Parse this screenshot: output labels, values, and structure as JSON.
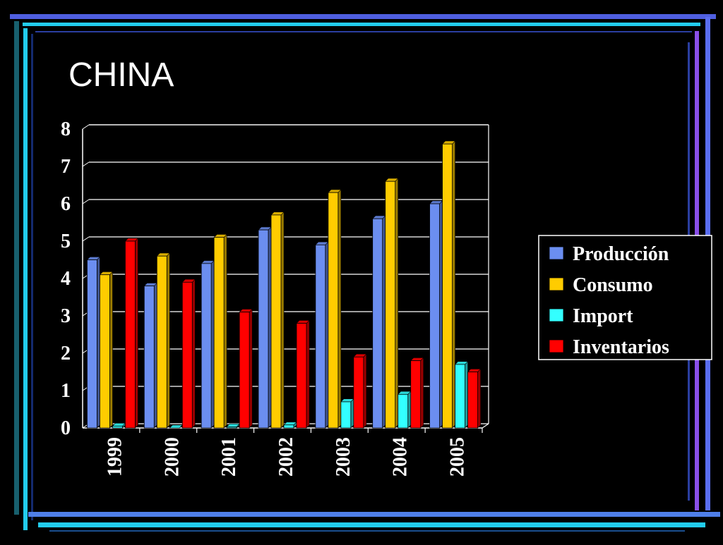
{
  "slide": {
    "title": "CHINA"
  },
  "chart_data": {
    "type": "bar",
    "title": "",
    "xlabel": "",
    "ylabel": "",
    "categories": [
      "1999",
      "2000",
      "2001",
      "2002",
      "2003",
      "2004",
      "2005"
    ],
    "ylim": [
      0,
      8
    ],
    "yticks": [
      "0",
      "1",
      "2",
      "3",
      "4",
      "5",
      "6",
      "7",
      "8"
    ],
    "grid": true,
    "legend_position": "right",
    "series": [
      {
        "name": "Producción",
        "color": "#6B8EF0",
        "values": [
          4.5,
          3.8,
          4.4,
          5.3,
          4.9,
          5.6,
          6.0
        ]
      },
      {
        "name": "Consumo",
        "color": "#FFCC00",
        "values": [
          4.1,
          4.6,
          5.1,
          5.7,
          6.3,
          6.6,
          7.6
        ]
      },
      {
        "name": "Import",
        "color": "#33FFFF",
        "values": [
          0.05,
          0.0,
          0.03,
          0.08,
          0.7,
          0.9,
          1.7
        ]
      },
      {
        "name": "Inventarios",
        "color": "#FF0000",
        "values": [
          5.0,
          3.9,
          3.1,
          2.8,
          1.9,
          1.8,
          1.5
        ]
      }
    ]
  }
}
